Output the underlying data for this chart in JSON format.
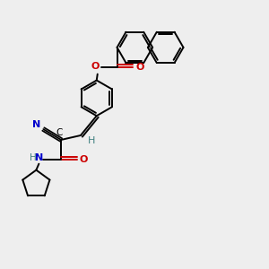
{
  "bg_color": "#eeeeee",
  "bond_color": "#000000",
  "bond_width": 1.4,
  "atom_colors": {
    "C": "#000000",
    "N": "#0000cc",
    "O": "#cc0000",
    "H": "#408080"
  },
  "figsize": [
    3.0,
    3.0
  ],
  "dpi": 100,
  "naph_r": 20,
  "ph_r": 20,
  "cp_r": 16
}
